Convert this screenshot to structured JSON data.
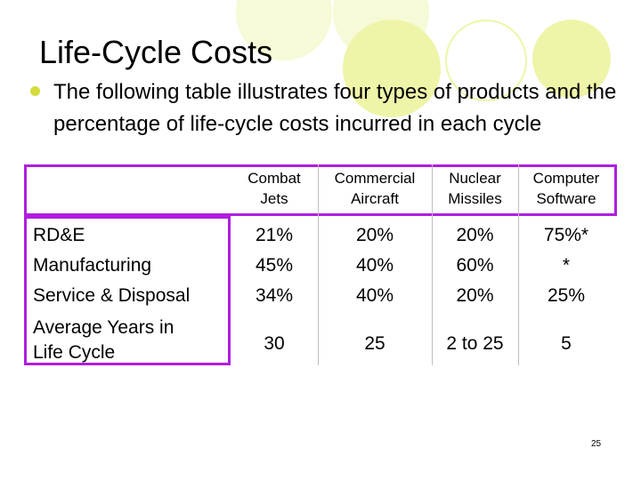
{
  "title": "Life-Cycle Costs",
  "bullet": "The following table illustrates four types of products and the percentage of life-cycle costs incurred in each cycle",
  "table": {
    "columns": [
      {
        "line1": "Combat",
        "line2": "Jets"
      },
      {
        "line1": "Commercial",
        "line2": "Aircraft"
      },
      {
        "line1": "Nuclear",
        "line2": "Missiles"
      },
      {
        "line1": "Computer",
        "line2": "Software"
      }
    ],
    "row_labels": [
      "RD&E",
      "Manufacturing",
      "Service & Disposal",
      "Average Years in",
      "Life Cycle"
    ],
    "data": [
      {
        "rde": "21%",
        "mfg": "45%",
        "svc": "34%",
        "years": "30"
      },
      {
        "rde": "20%",
        "mfg": "40%",
        "svc": "40%",
        "years": "25"
      },
      {
        "rde": "20%",
        "mfg": "60%",
        "svc": "20%",
        "years": "2 to 25"
      },
      {
        "rde": "75%*",
        "mfg": "*",
        "svc": "25%",
        "years": "5"
      }
    ]
  },
  "slide_number": "25",
  "colors": {
    "accent_circles": "#eef5a8",
    "bullet": "#d4dc3c",
    "table_border": "#b01ee0"
  }
}
